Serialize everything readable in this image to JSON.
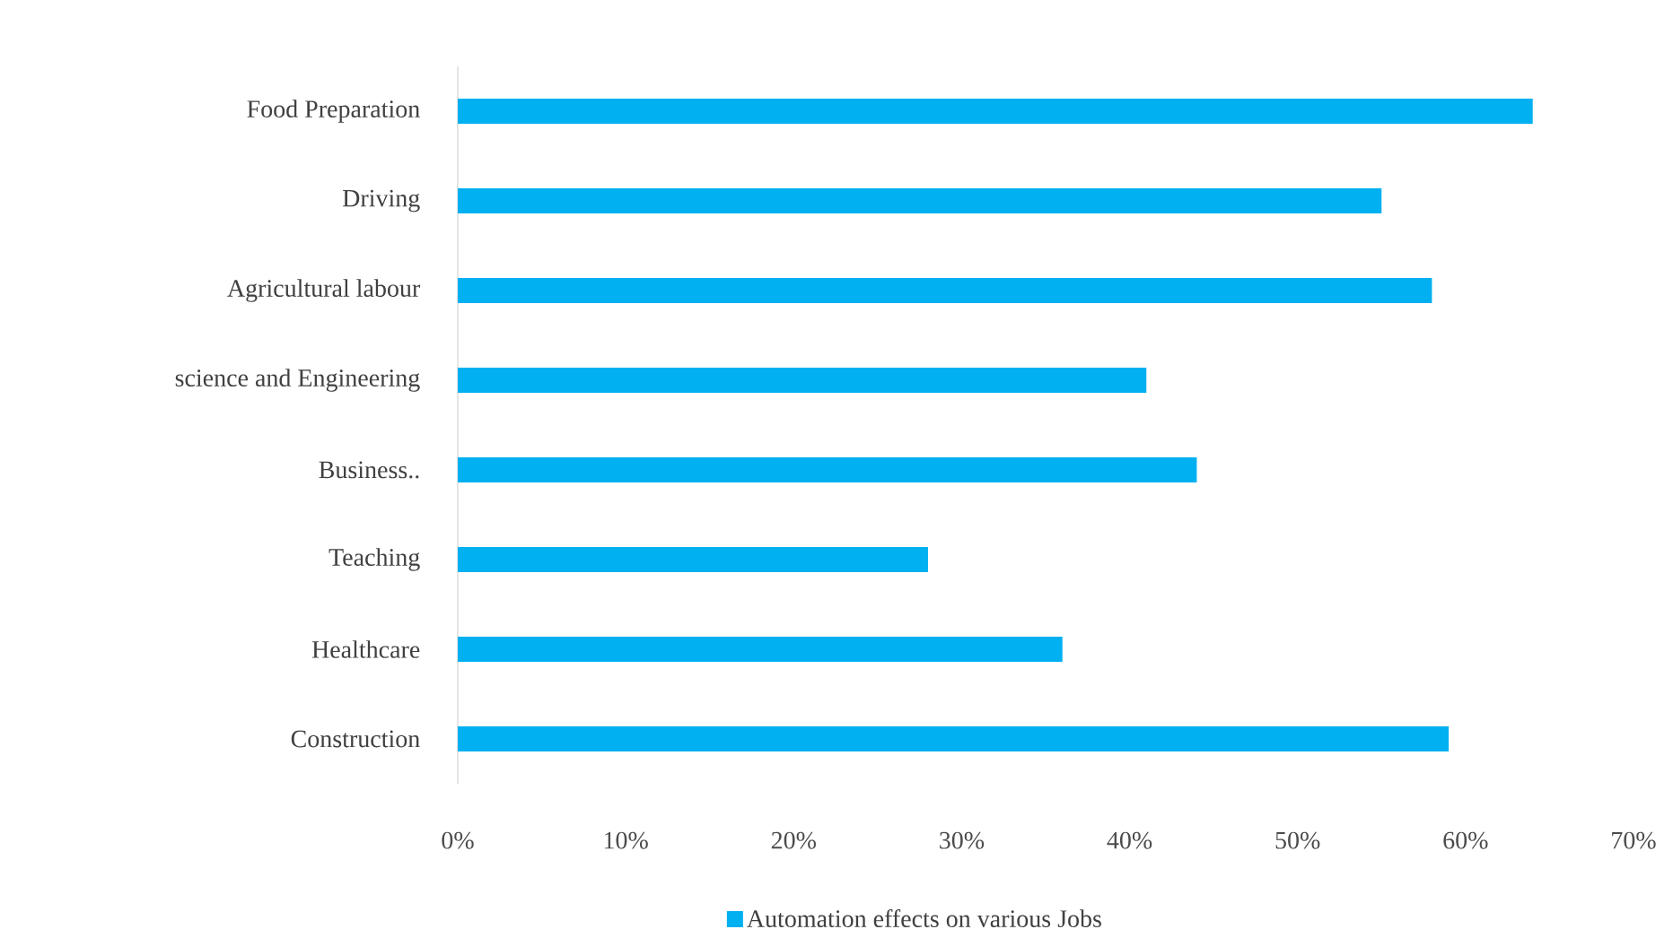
{
  "chart_data": {
    "type": "bar",
    "orientation": "horizontal",
    "categories": [
      "Food Preparation",
      "Driving",
      "Agricultural labour",
      "science and Engineering",
      "Business..",
      "Teaching",
      "Healthcare",
      "Construction"
    ],
    "series": [
      {
        "name": "Automation effects on various Jobs",
        "color": "#00b0f0",
        "values": [
          64,
          55,
          58,
          41,
          44,
          28,
          36,
          59
        ]
      }
    ],
    "xlim": [
      0,
      70
    ],
    "xticks": [
      {
        "value": 0,
        "label": "0%"
      },
      {
        "value": 10,
        "label": "10%"
      },
      {
        "value": 20,
        "label": "20%"
      },
      {
        "value": 30,
        "label": "30%"
      },
      {
        "value": 40,
        "label": "40%"
      },
      {
        "value": 50,
        "label": "50%"
      },
      {
        "value": 60,
        "label": "60%"
      },
      {
        "value": 70,
        "label": "70%"
      }
    ],
    "grid": false,
    "legend": "bottom"
  }
}
